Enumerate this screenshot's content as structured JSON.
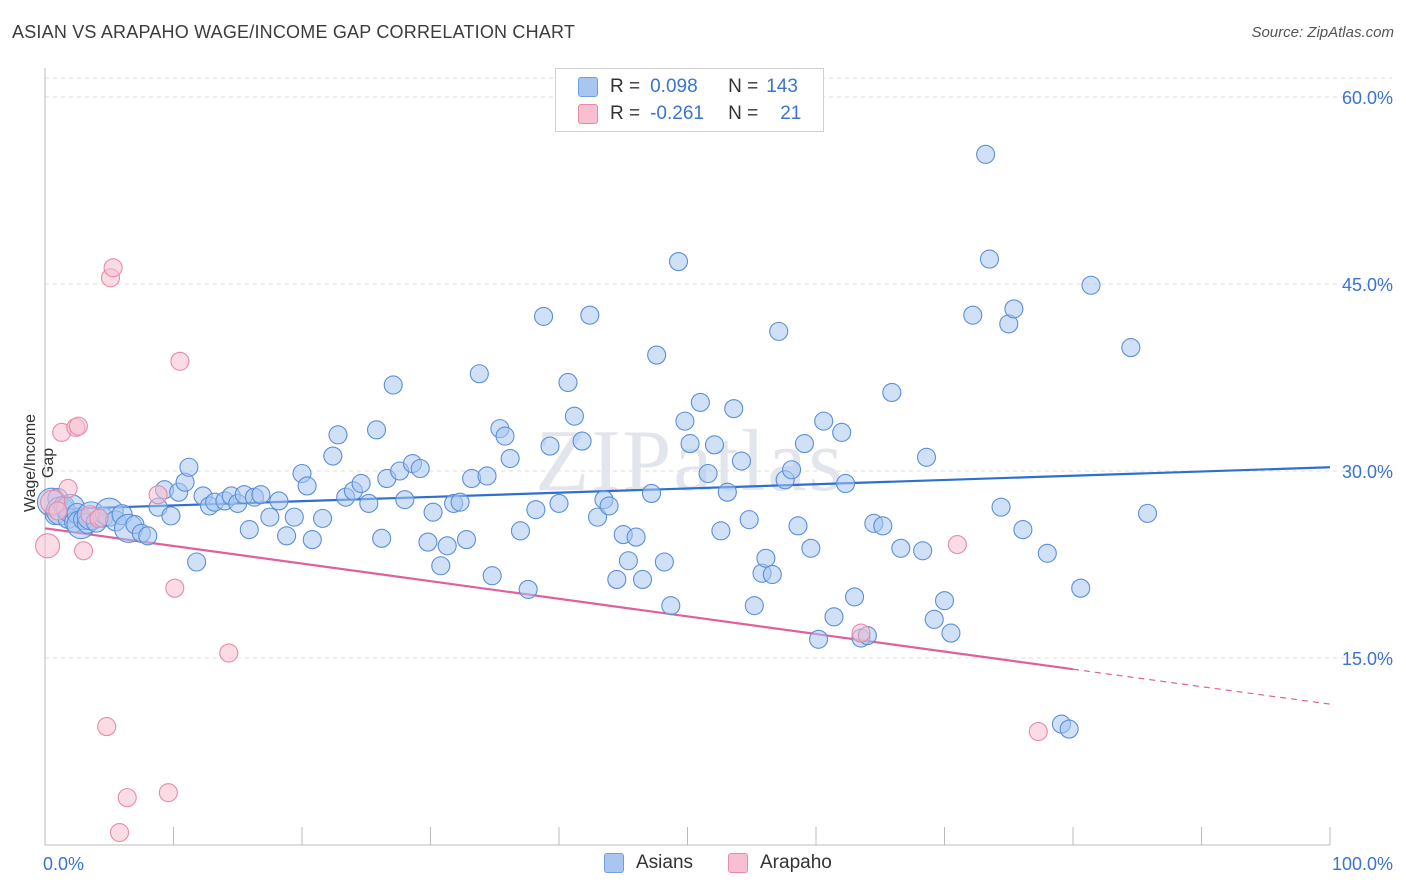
{
  "title": "ASIAN VS ARAPAHO WAGE/INCOME GAP CORRELATION CHART",
  "source": "Source: ZipAtlas.com",
  "watermark": "ZIPatlas",
  "legend": {
    "rows": [
      {
        "r_label": "R =",
        "r_value": "0.098",
        "n_label": "N =",
        "n_value": "143",
        "color": "#a8c6f0",
        "border": "#6f9fe0"
      },
      {
        "r_label": "R =",
        "r_value": "-0.261",
        "n_label": "N =",
        "n_value": "21",
        "color": "#f7bfd0",
        "border": "#e88aa8"
      }
    ]
  },
  "bottom_legend": [
    {
      "label": "Asians",
      "color": "#a8c6f0",
      "border": "#6f9fe0"
    },
    {
      "label": "Arapaho",
      "color": "#f7bfd0",
      "border": "#e88aa8"
    }
  ],
  "chart_data": {
    "type": "scatter",
    "title": "ASIAN VS ARAPAHO WAGE/INCOME GAP CORRELATION CHART",
    "xlabel": "",
    "ylabel": "Wage/Income Gap",
    "xlim": [
      0,
      100
    ],
    "ylim": [
      0,
      60
    ],
    "x_tick_labels": [
      "0.0%",
      "100.0%"
    ],
    "y_tick_labels": [
      "15.0%",
      "30.0%",
      "45.0%",
      "60.0%"
    ],
    "y_ticks": [
      15,
      30,
      45,
      60
    ],
    "grid": true,
    "series": [
      {
        "name": "Asians",
        "color": "#a8c6f0",
        "stroke": "#5b8fd9",
        "trend": {
          "x": [
            0,
            100
          ],
          "y": [
            26.9,
            30.3
          ],
          "color": "#2f6fd0"
        },
        "points": [
          [
            0.5,
            27.5
          ],
          [
            0.8,
            26.5
          ],
          [
            1.0,
            27.8
          ],
          [
            1.2,
            26.8
          ],
          [
            1.5,
            27.2
          ],
          [
            1.8,
            26.2
          ],
          [
            2.0,
            27.0
          ],
          [
            2.3,
            25.9
          ],
          [
            2.5,
            26.6
          ],
          [
            2.8,
            25.7
          ],
          [
            3.0,
            26.1
          ],
          [
            3.3,
            25.8
          ],
          [
            3.6,
            26.4
          ],
          [
            4.0,
            25.9
          ],
          [
            4.5,
            26.3
          ],
          [
            5.0,
            26.7
          ],
          [
            5.5,
            26.0
          ],
          [
            6.0,
            26.5
          ],
          [
            6.5,
            25.4
          ],
          [
            7.0,
            25.7
          ],
          [
            7.5,
            25.0
          ],
          [
            8.0,
            24.8
          ],
          [
            8.8,
            27.1
          ],
          [
            9.3,
            28.5
          ],
          [
            9.8,
            26.4
          ],
          [
            10.4,
            28.3
          ],
          [
            10.9,
            29.1
          ],
          [
            11.2,
            30.3
          ],
          [
            11.8,
            22.7
          ],
          [
            12.3,
            28.0
          ],
          [
            12.8,
            27.2
          ],
          [
            13.2,
            27.5
          ],
          [
            14.0,
            27.6
          ],
          [
            14.5,
            28.0
          ],
          [
            15.0,
            27.4
          ],
          [
            15.5,
            28.1
          ],
          [
            15.9,
            25.3
          ],
          [
            16.3,
            27.9
          ],
          [
            16.8,
            28.1
          ],
          [
            17.5,
            26.3
          ],
          [
            18.2,
            27.6
          ],
          [
            18.8,
            24.8
          ],
          [
            19.4,
            26.3
          ],
          [
            20.0,
            29.8
          ],
          [
            20.4,
            28.8
          ],
          [
            20.8,
            24.5
          ],
          [
            21.6,
            26.2
          ],
          [
            22.4,
            31.2
          ],
          [
            22.8,
            32.9
          ],
          [
            23.4,
            27.9
          ],
          [
            24.0,
            28.4
          ],
          [
            24.6,
            29.0
          ],
          [
            25.2,
            27.4
          ],
          [
            25.8,
            33.3
          ],
          [
            26.2,
            24.6
          ],
          [
            26.6,
            29.4
          ],
          [
            27.1,
            36.9
          ],
          [
            27.6,
            30.0
          ],
          [
            28.0,
            27.7
          ],
          [
            28.6,
            30.6
          ],
          [
            29.2,
            30.2
          ],
          [
            29.8,
            24.3
          ],
          [
            30.2,
            26.7
          ],
          [
            30.8,
            22.4
          ],
          [
            31.3,
            24.0
          ],
          [
            31.8,
            27.4
          ],
          [
            32.3,
            27.5
          ],
          [
            32.8,
            24.5
          ],
          [
            33.2,
            29.4
          ],
          [
            33.8,
            37.8
          ],
          [
            34.4,
            29.6
          ],
          [
            34.8,
            21.6
          ],
          [
            35.4,
            33.4
          ],
          [
            35.8,
            32.8
          ],
          [
            36.2,
            31.0
          ],
          [
            37.0,
            25.2
          ],
          [
            37.6,
            20.5
          ],
          [
            38.2,
            26.9
          ],
          [
            38.8,
            42.4
          ],
          [
            39.3,
            32.0
          ],
          [
            40.0,
            27.4
          ],
          [
            40.7,
            37.1
          ],
          [
            41.2,
            34.4
          ],
          [
            41.8,
            32.4
          ],
          [
            42.4,
            42.5
          ],
          [
            43.0,
            26.3
          ],
          [
            43.5,
            27.7
          ],
          [
            43.9,
            27.2
          ],
          [
            44.5,
            21.3
          ],
          [
            45.0,
            24.9
          ],
          [
            45.4,
            22.8
          ],
          [
            46.0,
            24.7
          ],
          [
            46.5,
            21.3
          ],
          [
            47.2,
            28.2
          ],
          [
            47.6,
            39.3
          ],
          [
            48.2,
            22.7
          ],
          [
            48.7,
            19.2
          ],
          [
            49.3,
            46.8
          ],
          [
            49.8,
            34.0
          ],
          [
            50.2,
            32.2
          ],
          [
            51.0,
            35.5
          ],
          [
            51.6,
            29.8
          ],
          [
            52.1,
            32.1
          ],
          [
            52.6,
            25.2
          ],
          [
            53.1,
            28.3
          ],
          [
            53.6,
            35.0
          ],
          [
            54.2,
            30.8
          ],
          [
            54.8,
            26.1
          ],
          [
            55.2,
            19.2
          ],
          [
            55.8,
            21.8
          ],
          [
            56.1,
            23.0
          ],
          [
            56.6,
            21.7
          ],
          [
            57.1,
            41.2
          ],
          [
            57.6,
            29.3
          ],
          [
            58.1,
            30.1
          ],
          [
            58.6,
            25.6
          ],
          [
            59.1,
            32.2
          ],
          [
            59.6,
            23.8
          ],
          [
            60.2,
            16.5
          ],
          [
            60.6,
            34.0
          ],
          [
            61.4,
            18.3
          ],
          [
            62.0,
            33.1
          ],
          [
            62.3,
            29.0
          ],
          [
            63.0,
            19.9
          ],
          [
            63.5,
            16.6
          ],
          [
            64.0,
            16.8
          ],
          [
            64.5,
            25.8
          ],
          [
            65.2,
            25.6
          ],
          [
            65.9,
            36.3
          ],
          [
            66.6,
            23.8
          ],
          [
            68.3,
            23.6
          ],
          [
            68.6,
            31.1
          ],
          [
            69.2,
            18.1
          ],
          [
            70.0,
            19.6
          ],
          [
            70.5,
            17.0
          ],
          [
            72.2,
            42.5
          ],
          [
            73.2,
            55.4
          ],
          [
            73.5,
            47.0
          ],
          [
            74.4,
            27.1
          ],
          [
            75.0,
            41.8
          ],
          [
            75.4,
            43.0
          ],
          [
            76.1,
            25.3
          ],
          [
            78.0,
            23.4
          ],
          [
            79.1,
            9.7
          ],
          [
            79.7,
            9.3
          ],
          [
            80.6,
            20.6
          ],
          [
            81.4,
            44.9
          ],
          [
            84.5,
            39.9
          ],
          [
            85.8,
            26.6
          ]
        ]
      },
      {
        "name": "Arapaho",
        "color": "#f7bfd0",
        "stroke": "#e88aa8",
        "trend": {
          "x": [
            0,
            80
          ],
          "y": [
            25.4,
            14.1
          ],
          "dashed_to": [
            100,
            11.3
          ],
          "color": "#e0609a"
        },
        "points": [
          [
            0.2,
            24.0
          ],
          [
            0.6,
            27.5
          ],
          [
            1.0,
            26.8
          ],
          [
            1.3,
            33.1
          ],
          [
            1.8,
            28.6
          ],
          [
            2.4,
            33.5
          ],
          [
            2.6,
            33.6
          ],
          [
            3.0,
            23.6
          ],
          [
            3.5,
            26.5
          ],
          [
            4.2,
            26.2
          ],
          [
            4.8,
            9.5
          ],
          [
            5.1,
            45.5
          ],
          [
            5.3,
            46.3
          ],
          [
            5.8,
            1.0
          ],
          [
            6.4,
            3.8
          ],
          [
            8.8,
            28.1
          ],
          [
            9.6,
            4.2
          ],
          [
            10.1,
            20.6
          ],
          [
            10.5,
            38.8
          ],
          [
            14.3,
            15.4
          ],
          [
            63.5,
            17.0
          ],
          [
            71.0,
            24.1
          ],
          [
            77.3,
            9.1
          ]
        ]
      }
    ]
  }
}
